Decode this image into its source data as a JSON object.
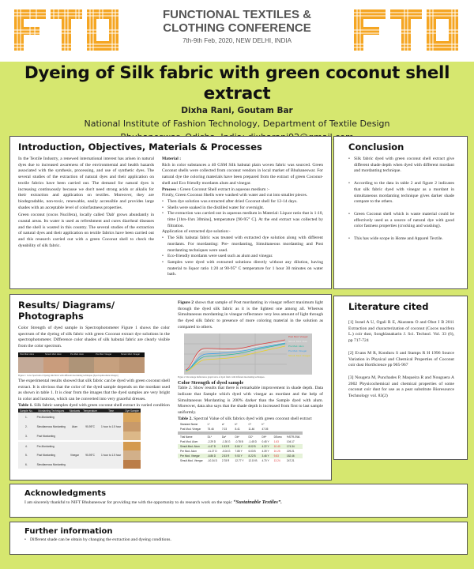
{
  "header": {
    "conference_line1": "FUNCTIONAL TEXTILES &",
    "conference_line2": "CLOTHING CONFERENCE",
    "date_place": "7th-9th Feb, 2020, NEW DELHI, INDIA",
    "logo_text": "FTC",
    "logo_color": "#f5a623"
  },
  "title": {
    "main": "Dyeing of Silk fabric with green coconut shell extract",
    "authors": "Dixha Rani, Goutam Bar",
    "affiliation": "National Institute of Fashion Technology, Department of Textile Design",
    "address": "Bhubaneswar, Odisha, India; dixharani92@gmail.com"
  },
  "intro": {
    "heading": "Introduction, Objectives, Materials & Processes",
    "p1": "In the Textile Industry, a renewed international interest has arisen in natural dyes due to increased awareness of the environmental and health hazards associated with the synthesis, processing, and use of synthetic dyes. The several studies of the extraction of natural dyes and their application on textile fabrics have been carried out. The demand for natural dyes is increasing continuously because we don't need strong acids or alkalis for their extraction and application on textiles. Moreover, they are biodegradable, non-toxic, renewable, easily accessible and provides large shades with an acceptable level of colorfastness properties.",
    "p2": "Green coconut (cocos Nucifera), locally called 'Dab' grows abundantly in coastal areas. Its water is used as refreshment and cures diarrheal diseases and the shell is wasted in this country. The several studies of the extraction of natural dyes and their application on textile fabrics have been carried out and this research carried out with a green Coconut shell to check the dyeability of silk fabric.",
    "material_label": "Material :",
    "material": "Rich in color substances a 40 GSM Silk habutai plain woven fabric was sourced. Green Coconut shells were collected from coconut vendors in local market of Bhubaneswar. For natural dye the coloring materials have been prepared from the extract of green Coconut-shell and Eco friendly mordants alum and vinegar.",
    "process_label": "Process :",
    "process": "Green Coconut Shell extract in aqueous medium :-",
    "process_intro": "Firstly, Green Coconut Shells were washed with water and cut into smaller pieces.",
    "process_steps": [
      "Then dye solution was extracted after dried Coconut shell for 12-14 days.",
      "Shells were soaked in the distilled water for overnight.",
      "The extraction was carried out in aqueous medium in Material: Liquor ratio that is 1:10, time [1hrs-1hrs 30mins], temperature [90-95° C]. At the end extract was collected by filtration."
    ],
    "application_label": "Application of extracted dye solution:-",
    "application_steps": [
      "The Silk habutai fabric was treated with extracted dye solution along with different mordants. For mordanting: Pre- mordanting, Simultaneous mordanting and Post mordanting techniques were used.",
      "Eco-friendly mordants were used such as alum and vinegar.",
      "Samples were dyed with extracted solutions directly without any dilution, having material to liquor ratio 1:20 at 90-95° C temperature for 1 hour 30 minutes on water bath."
    ]
  },
  "conclusion": {
    "heading": "Conclusion",
    "items": [
      "Silk fabric dyed with green coconut shell extract give different shade depth when dyed with different mordant and mordanting technique.",
      "According to the data in table 2 and figure 2 indicates that silk fabric dyed with vinegar as a mordant in simultaneous mordanting technique gives darker shade compare to the others.",
      "Green Coconut shell which is waste material could be effectively used as a source of natural dye with good color fastness properties (crocking and washing).",
      "This has wide scope in Home and Apparel Textile."
    ]
  },
  "results": {
    "heading": "Results/ Diagrams/ Photographs",
    "p1": "Color Strength of dyed sample in Spectrophotometer Figure 1 shows the color spectrum of the dyeing of silk fabric with green Coconut extract dye solutions in the spectrophotometer. Difference color shades of silk habutai fabric are clearly visible from the color spectrum.",
    "figure1": {
      "labels": [
        "Post Mod. Alum",
        "Simult. Mod. Alum",
        "Pre Mod. Alum",
        "Pre Mod. Vinegar",
        "Simult. Mod. Vinegar"
      ],
      "colors": [
        "#c4aa98",
        "#c99c7c",
        "#ae9478",
        "#c6a07e",
        "#bb9574"
      ],
      "caption": "Figure 1: Color Spectrum of dyeing silk fabric with different mordanting techniques (Spectrophotometer images)"
    },
    "p2": "The experimental results showed that silk fabric can be dyed with green coconut shell extract. It is obvious that the color of the dyed sample depends on the mordant used as shown in table 1. It is clear from the images that the dyed samples are very bright in color and lustrous, which can be converted into very graceful dresses.",
    "table1": {
      "label": "Table 1.",
      "caption": "Silk fabric samples dyed with green coconut shell extract in varied condition",
      "headers": [
        "Sample No.",
        "Mordanting Techniques",
        "Mordants",
        "Temperature",
        "Time",
        "Dye Sample"
      ],
      "groups": [
        {
          "mordant": "Alum",
          "temperature": "90-95°C",
          "time": "1 hour to 1.5 hour",
          "rows": [
            [
              "1.",
              "Pre-Mordanting"
            ],
            [
              "2.",
              "Simultaneous Mordanting"
            ],
            [
              "3.",
              "Post Mordanting"
            ]
          ],
          "swatches": [
            "#d9a55c",
            "#c89a6a",
            "#dcb888"
          ]
        },
        {
          "mordant": "Vinegar",
          "temperature": "90-95°C",
          "time": "1 hour to 1.5 hour",
          "rows": [
            [
              "4.",
              "Pre-Mordanting"
            ],
            [
              "5.",
              "Post Mordanting"
            ],
            [
              "6.",
              "Simultaneous Mordanting"
            ]
          ],
          "swatches": [
            "#d49a4e",
            "#d2b08a",
            "#bb7d48"
          ]
        }
      ]
    },
    "fig2_label": "Figure 2",
    "p3": "shows that sample of Post mordanting in vinegar reflect maximum light through the dyed silk fabric as it is the lightest one among all. Whereas Simultaneous mordanting in vinegar reflectance very less amount of light through the dyed silk fabric to presence of more coloring material in the solution as compared to others.",
    "figure2": {
      "legend": [
        {
          "name": "Post Mod. Vinegar",
          "color": "#e03c3c"
        },
        {
          "name": "Simult. Mod. Alum",
          "color": "#eeeeee"
        },
        {
          "name": "Pre Mod. Alum",
          "color": "#1fb89a"
        },
        {
          "name": "Pre Mod. Vinegar",
          "color": "#3aa0e8"
        },
        {
          "name": "Simult. Mod. Vinegar",
          "color": "#e8d020"
        }
      ],
      "caption": "Figure 2: Percentage Reflectance graph curve of dyed fabric with different mordanting techniques."
    },
    "cs_heading": "Color Strength of dyed sample",
    "p4": "Table 2. Show results that there is remarkable improvement in shade depth. Data indicate that Sample which dyed with vinegar as mordant and the help of Simultaneous Mordanting is 200% darker than the Sample dyed with alum. Moreover, data also says that the shade depth is increased from first to last sample uniformly.",
    "table2": {
      "label": "Table 2.",
      "caption": "Spectral Value of silk fabrics dyed with green coconut shell extract",
      "std_headers": [
        "Standard Name",
        "L*",
        "a*",
        "b*",
        "C*",
        "h°"
      ],
      "std_row": [
        "Post Mod. Vinegar",
        "75.46",
        "7.03",
        "8.41",
        "11.46",
        "47.05"
      ],
      "trial_headers": [
        "Trial Name",
        "DL*",
        "Da*",
        "Db*",
        "DC*",
        "DH*",
        "DEcmc",
        "%STR-SWL"
      ],
      "trial_rows": [
        [
          "Post Mod. Alum",
          "-2.29 D",
          "-1.30 G",
          "-0.78 B",
          "-1.45 D",
          "0.45 Y",
          "1.63",
          "104.17"
        ],
        [
          "Simult.Mod. Alum",
          "-4.47 D",
          "1.53 R",
          "8.84 Y",
          "8.02 B",
          "4.22 Y",
          "10.40",
          "174.34"
        ],
        [
          "Pre Mod. Alum",
          "-11.27 D",
          "-0.04 G",
          "7.85 Y",
          "6.03 B",
          "4.39 Y",
          "10.25",
          "229.21"
        ],
        [
          "Pre Mod. Vinegar",
          "-6.86 D",
          "2.53 R",
          "9.53 Y",
          "8.22 B",
          "3.46 Y",
          "9.83",
          "182.46"
        ],
        [
          "Simult.Mod. Vinegar",
          "-10.34 D",
          "2.78 R",
          "12.77 Y",
          "12.19 B",
          "4.70 Y",
          "13.24",
          "247.21"
        ]
      ]
    }
  },
  "literature": {
    "heading": "Literature cited",
    "refs": [
      "[1] Israel A U, Ogali R E, Akaranta O and Obot I B 2011 Extraction and characterization of coconut (Cocos nucifera L.) coir dust, Songklanakarin J. Sci. Technol. Vol. 33 (6), pp 717-724",
      "[2] Evans M R, Konduru S and Stamps R H 1996 Source Variation in Physical and Chemical Properties of Coconut coir dust HortScience pp 965-967",
      "[3] Nougera M, Punchades P, Maqueira R and Nouguera A 2002 Physicochemical and chemical properties of some coconut coir dust for use as a peat substitute Bioresource Technology vol. 83(2)"
    ]
  },
  "ack": {
    "heading": "Acknowledgments",
    "text": "I am sincerely thankful to NIFT Bhubaneswar for providing me with the opportunity to do research work on the topic ",
    "topic": "“Sustainable Textiles”."
  },
  "further": {
    "heading": "Further information",
    "items": [
      "Different shade can be obtain by changing the extraction and dyeing conditions."
    ]
  }
}
